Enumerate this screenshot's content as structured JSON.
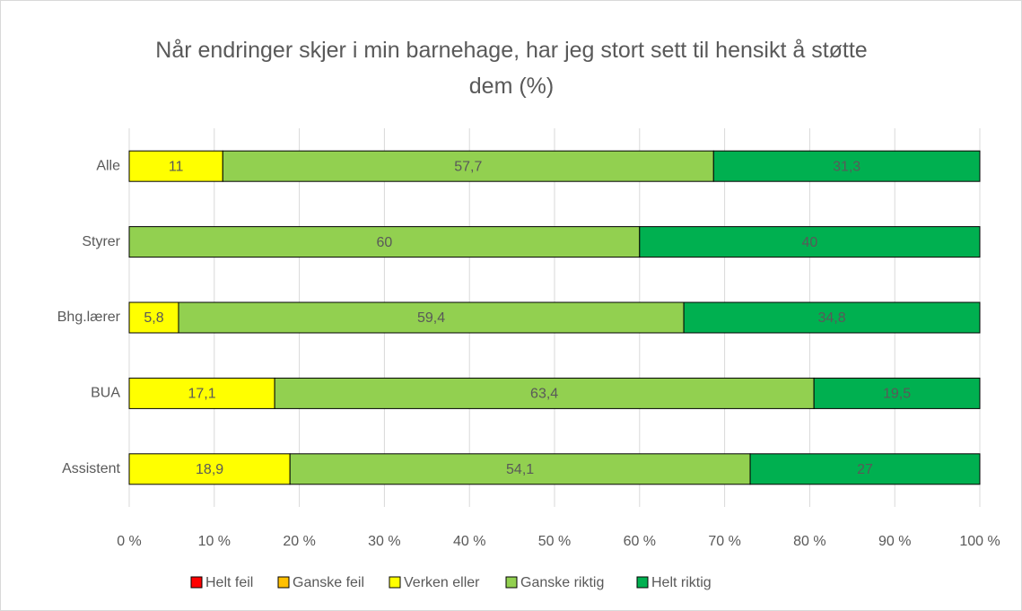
{
  "chart_data": {
    "type": "stacked_barh",
    "title": "Når endringer skjer i min barnehage, har jeg stort sett til hensikt å støtte dem (%)",
    "categories": [
      "Alle",
      "Styrer",
      "Bhg.lærer",
      "BUA",
      "Assistent"
    ],
    "series": [
      {
        "name": "Helt feil",
        "color": "#ff0000",
        "values": [
          0,
          0,
          0,
          0,
          0
        ]
      },
      {
        "name": "Ganske feil",
        "color": "#ffc000",
        "values": [
          0,
          0,
          0,
          0,
          0
        ]
      },
      {
        "name": "Verken eller",
        "color": "#ffff00",
        "values": [
          11,
          0,
          5.8,
          17.1,
          18.9
        ],
        "value_labels": [
          "11",
          null,
          "5,8",
          "17,1",
          "18,9"
        ]
      },
      {
        "name": "Ganske riktig",
        "color": "#92d050",
        "values": [
          57.7,
          60,
          59.4,
          63.4,
          54.1
        ],
        "value_labels": [
          "57,7",
          "60",
          "59,4",
          "63,4",
          "54,1"
        ]
      },
      {
        "name": "Helt riktig",
        "color": "#00b050",
        "values": [
          31.3,
          40,
          34.8,
          19.5,
          27
        ],
        "value_labels": [
          "31,3",
          "40",
          "34,8",
          "19,5",
          "27"
        ]
      }
    ],
    "xlim": [
      0,
      100
    ],
    "xticks": [
      {
        "value": 0,
        "label": "0 %"
      },
      {
        "value": 10,
        "label": "10 %"
      },
      {
        "value": 20,
        "label": "20 %"
      },
      {
        "value": 30,
        "label": "30 %"
      },
      {
        "value": 40,
        "label": "40 %"
      },
      {
        "value": 50,
        "label": "50 %"
      },
      {
        "value": 60,
        "label": "60 %"
      },
      {
        "value": 70,
        "label": "70 %"
      },
      {
        "value": 80,
        "label": "80 %"
      },
      {
        "value": 90,
        "label": "90 %"
      },
      {
        "value": 100,
        "label": "100 %"
      }
    ],
    "grid": true,
    "legend": "bottom"
  }
}
